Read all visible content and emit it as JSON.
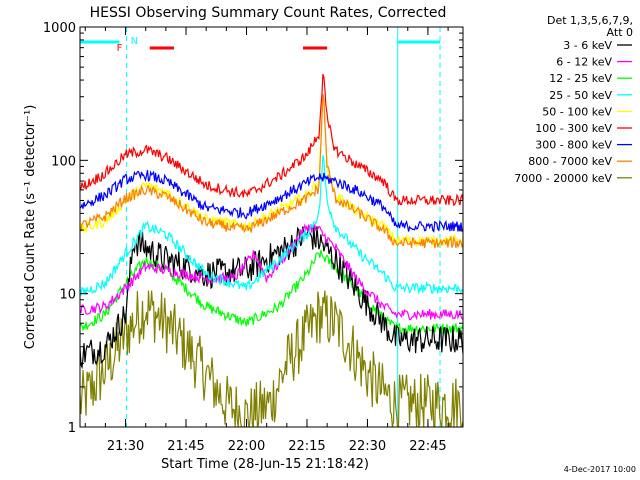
{
  "chart_data": {
    "type": "line",
    "title": "HESSI Observing Summary Count Rates, Corrected",
    "xlabel": "Start Time (28-Jun-15 21:18:42)",
    "ylabel": "Corrected Count Rate (s⁻¹ detector⁻¹)",
    "y_scale": "log",
    "ylim": [
      1,
      1000
    ],
    "xlim": [
      "21:18:42",
      "22:53:42"
    ],
    "x_ticks": [
      "21:30",
      "21:45",
      "22:00",
      "22:15",
      "22:30",
      "22:45"
    ],
    "y_ticks": [
      "1",
      "10",
      "100",
      "1000"
    ],
    "grid": false,
    "legend_header": [
      "Det 1,3,5,6,7,9,",
      "Att 0"
    ],
    "legend_placement": "right",
    "footer_date": "4-Dec-2017 10:00",
    "markers": {
      "flare_flag": "F",
      "night_flag": "N"
    },
    "attenuator_bars": [
      {
        "color": "#00ffff",
        "start": "21:18:42",
        "end": "21:28:30"
      },
      {
        "color": "#00ffff",
        "start": "22:37:30",
        "end": "22:48:00"
      }
    ],
    "flare_bars": [
      {
        "color": "#ff0000",
        "start": "21:36:00",
        "end": "21:42:00"
      },
      {
        "color": "#ff0000",
        "start": "22:14:00",
        "end": "22:20:00"
      }
    ],
    "night_intervals_dashed": [
      "21:30:15",
      "22:37:30",
      "22:48:00"
    ],
    "series": [
      {
        "name": "3 - 6 keV",
        "color": "#000000",
        "x": [
          "21:18:42",
          "21:25",
          "21:30",
          "21:32",
          "21:40",
          "21:50",
          "22:00",
          "22:10",
          "22:15",
          "22:18",
          "22:22",
          "22:28",
          "22:34",
          "22:37",
          "22:45",
          "22:48"
        ],
        "values": [
          3.5,
          4.0,
          7.0,
          25,
          18,
          14,
          15,
          22,
          28,
          25,
          18,
          10,
          6,
          4.5,
          4.5,
          4.5
        ]
      },
      {
        "name": "6 - 12 keV",
        "color": "#ff00ff",
        "x": [
          "21:18:42",
          "21:25",
          "21:30",
          "21:35",
          "21:40",
          "21:50",
          "21:57",
          "22:02",
          "22:05",
          "22:10",
          "22:15",
          "22:18",
          "22:22",
          "22:28",
          "22:34",
          "22:37",
          "22:45",
          "22:48"
        ],
        "values": [
          7.5,
          8,
          11,
          16,
          15,
          13,
          13,
          20,
          13,
          20,
          32,
          30,
          22,
          12,
          8,
          7,
          7,
          7
        ]
      },
      {
        "name": "12 - 25 keV",
        "color": "#00ff00",
        "x": [
          "21:18:42",
          "21:25",
          "21:30",
          "21:35",
          "21:40",
          "21:50",
          "22:00",
          "22:08",
          "22:15",
          "22:18",
          "22:22",
          "22:28",
          "22:34",
          "22:37",
          "22:45",
          "22:48"
        ],
        "values": [
          5.5,
          7,
          12,
          18,
          15,
          8,
          6,
          8,
          14,
          20,
          16,
          10,
          6.5,
          5.5,
          5.5,
          5.5
        ]
      },
      {
        "name": "25 - 50 keV",
        "color": "#00ffff",
        "x": [
          "21:18:42",
          "21:25",
          "21:30",
          "21:35",
          "21:40",
          "21:50",
          "22:00",
          "22:08",
          "22:15",
          "22:18",
          "22:19",
          "22:20",
          "22:22",
          "22:28",
          "22:34",
          "22:37",
          "22:45",
          "22:48"
        ],
        "values": [
          10,
          12,
          20,
          32,
          28,
          14,
          11,
          18,
          28,
          40,
          110,
          50,
          32,
          20,
          14,
          11,
          11,
          11
        ]
      },
      {
        "name": "50 - 100 keV",
        "color": "#ffff00",
        "x": [
          "21:18:42",
          "21:25",
          "21:30",
          "21:35",
          "21:40",
          "21:50",
          "22:00",
          "22:08",
          "22:15",
          "22:18",
          "22:19",
          "22:20",
          "22:22",
          "22:28",
          "22:34",
          "22:37",
          "22:45",
          "22:48"
        ],
        "values": [
          30,
          35,
          50,
          65,
          58,
          36,
          32,
          42,
          55,
          70,
          330,
          90,
          55,
          40,
          32,
          25,
          25,
          25
        ]
      },
      {
        "name": "100 - 300 keV",
        "color": "#ff0000",
        "x": [
          "21:18:42",
          "21:25",
          "21:30",
          "21:35",
          "21:40",
          "21:50",
          "22:00",
          "22:08",
          "22:15",
          "22:18",
          "22:19",
          "22:20",
          "22:22",
          "22:28",
          "22:34",
          "22:37",
          "22:45",
          "22:48"
        ],
        "values": [
          62,
          80,
          110,
          120,
          105,
          65,
          55,
          75,
          110,
          160,
          460,
          200,
          120,
          90,
          70,
          50,
          50,
          50
        ]
      },
      {
        "name": "300 - 800 keV",
        "color": "#0000ff",
        "x": [
          "21:18:42",
          "21:25",
          "21:30",
          "21:35",
          "21:40",
          "21:50",
          "22:00",
          "22:08",
          "22:15",
          "22:18",
          "22:22",
          "22:28",
          "22:34",
          "22:37",
          "22:45",
          "22:48"
        ],
        "values": [
          45,
          55,
          72,
          78,
          70,
          44,
          40,
          52,
          68,
          75,
          70,
          58,
          45,
          32,
          32,
          32
        ]
      },
      {
        "name": "800 - 7000 keV",
        "color": "#ff8000",
        "x": [
          "21:18:42",
          "21:25",
          "21:30",
          "21:35",
          "21:40",
          "21:50",
          "22:00",
          "22:08",
          "22:15",
          "22:18",
          "22:19",
          "22:20",
          "22:22",
          "22:28",
          "22:34",
          "22:37",
          "22:45",
          "22:48"
        ],
        "values": [
          32,
          38,
          52,
          60,
          54,
          34,
          30,
          40,
          52,
          62,
          350,
          90,
          52,
          40,
          30,
          24,
          24,
          24
        ]
      },
      {
        "name": "7000 - 20000 keV",
        "color": "#808000",
        "x": [
          "21:18:42",
          "21:22",
          "21:26",
          "21:30",
          "21:35",
          "21:40",
          "21:45",
          "21:50",
          "21:55",
          "22:00",
          "22:06",
          "22:10",
          "22:15",
          "22:18",
          "22:22",
          "22:26",
          "22:30",
          "22:34",
          "22:37",
          "22:45",
          "22:48"
        ],
        "values": [
          1.5,
          2,
          3,
          5,
          8,
          6,
          4,
          2.5,
          1.5,
          1.2,
          1.5,
          3,
          5,
          7,
          6,
          4,
          2.5,
          1.8,
          1.5,
          1.5,
          1.5
        ]
      }
    ]
  }
}
